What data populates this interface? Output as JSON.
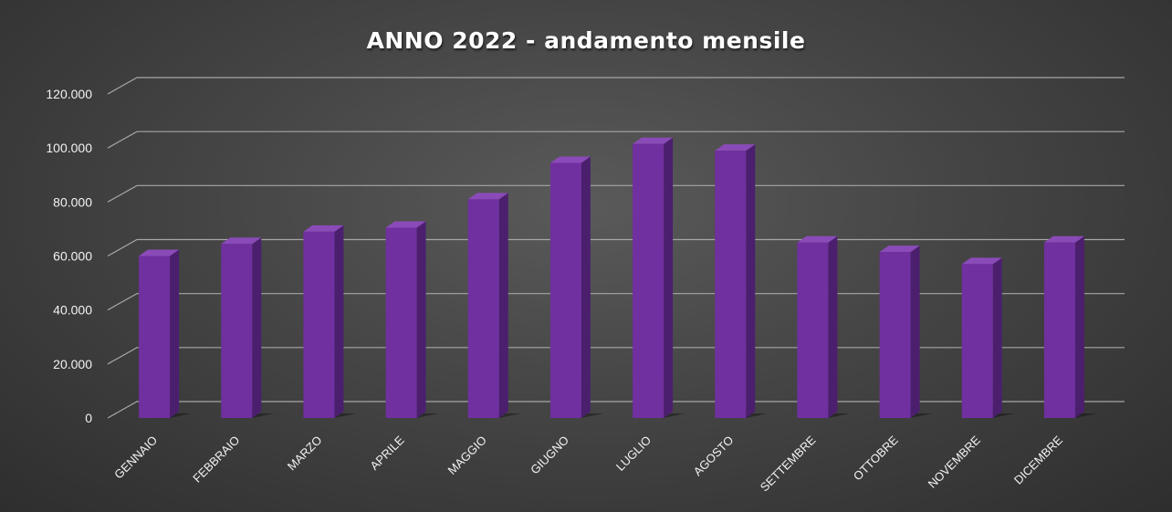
{
  "chart_data": {
    "type": "bar",
    "title": "ANNO 2022 - andamento mensile",
    "xlabel": "",
    "ylabel": "",
    "categories": [
      "GENNAIO",
      "FEBBRAIO",
      "MARZO",
      "APRILE",
      "MAGGIO",
      "GIUGNO",
      "LUGLIO",
      "AGOSTO",
      "SETTEMBRE",
      "OTTOBRE",
      "NOVEMBRE",
      "DICEMBRE"
    ],
    "values": [
      60000,
      64500,
      69000,
      70500,
      81000,
      94500,
      101500,
      99000,
      65000,
      61500,
      57000,
      65000
    ],
    "ylim": [
      0,
      120000
    ],
    "yticks": [
      0,
      20000,
      40000,
      60000,
      80000,
      100000,
      120000
    ],
    "ytick_labels": [
      "0",
      "20.000",
      "40.000",
      "60.000",
      "80.000",
      "100.000",
      "120.000"
    ],
    "grid": true,
    "style": "3d-column",
    "colors": {
      "bar_front": "#7030a0",
      "bar_side": "#4b1f6e",
      "bar_top": "#8a4bb8",
      "background": "#444444",
      "grid": "#a6a6a6"
    }
  }
}
